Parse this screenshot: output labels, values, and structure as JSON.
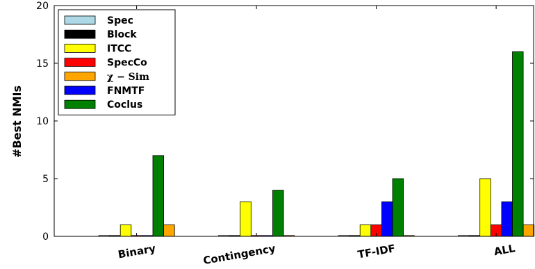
{
  "chart_data": {
    "type": "bar",
    "title": "",
    "xlabel": "",
    "ylabel": "#Best NMIs",
    "ylim": [
      0,
      20
    ],
    "yticks": [
      0,
      5,
      10,
      15,
      20
    ],
    "grid": false,
    "legend_position": "top-left",
    "categories": [
      "Binary",
      "Contingency",
      "TF-IDF",
      "ALL"
    ],
    "series": [
      {
        "name": "Spec",
        "color": "#add8e6",
        "values": [
          0,
          0,
          0,
          0
        ]
      },
      {
        "name": "Block",
        "color": "#000000",
        "values": [
          0,
          0,
          0,
          0
        ]
      },
      {
        "name": "ITCC",
        "color": "#ffff00",
        "values": [
          1,
          3,
          1,
          5
        ]
      },
      {
        "name": "SpecCo",
        "color": "#ff0000",
        "values": [
          0,
          0,
          1,
          1
        ]
      },
      {
        "name": "FNMTF",
        "color": "#0000ff",
        "values": [
          0,
          0,
          3,
          3
        ]
      },
      {
        "name": "Coclus",
        "color": "#008000",
        "values": [
          7,
          4,
          5,
          16
        ]
      },
      {
        "name": "χ − Sim",
        "color": "#ffa500",
        "values": [
          1,
          0,
          0,
          1
        ]
      }
    ],
    "legend_order": [
      0,
      1,
      2,
      3,
      6,
      4,
      5
    ]
  }
}
